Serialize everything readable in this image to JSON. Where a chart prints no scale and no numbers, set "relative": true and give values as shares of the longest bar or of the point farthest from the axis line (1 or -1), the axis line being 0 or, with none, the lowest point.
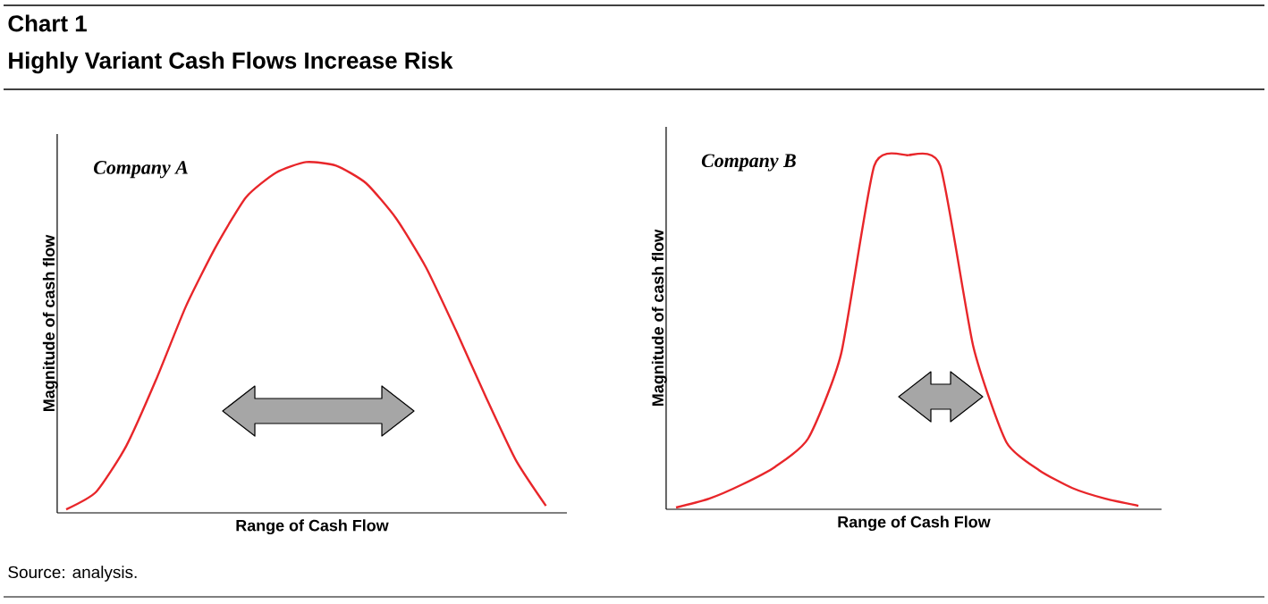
{
  "chart_data": [
    {
      "type": "line",
      "title": "Company A",
      "xlabel": "Range of Cash Flow",
      "ylabel": "Magnitude of cash flow",
      "relative": true,
      "annotations": [
        "Chart 1",
        "Highly Variant Cash Flows Increase Risk",
        "Source: analysis."
      ],
      "categories": [
        null,
        null,
        null,
        null,
        null,
        null,
        null,
        null,
        null,
        null,
        null,
        null,
        null,
        null,
        null,
        null,
        null
      ],
      "series": [
        {
          "color": "#e8262a",
          "values": [
            0.01,
            0.06,
            0.19,
            0.38,
            0.59,
            0.76,
            0.9,
            0.97,
            1.0,
            0.99,
            0.94,
            0.84,
            0.7,
            0.52,
            0.33,
            0.15,
            0.02
          ]
        }
      ]
    },
    {
      "type": "line",
      "title": "Company B",
      "xlabel": "Range of Cash Flow",
      "ylabel": "Magnitude of cash flow",
      "relative": true,
      "categories": [
        null,
        null,
        null,
        null,
        null,
        null,
        null,
        null,
        null,
        null,
        null,
        null,
        null,
        null,
        null
      ],
      "series": [
        {
          "color": "#e8262a",
          "values": [
            0.005,
            0.03,
            0.07,
            0.12,
            0.2,
            0.44,
            0.97,
            1.0,
            0.97,
            0.46,
            0.19,
            0.11,
            0.06,
            0.03,
            0.01
          ]
        }
      ]
    }
  ]
}
